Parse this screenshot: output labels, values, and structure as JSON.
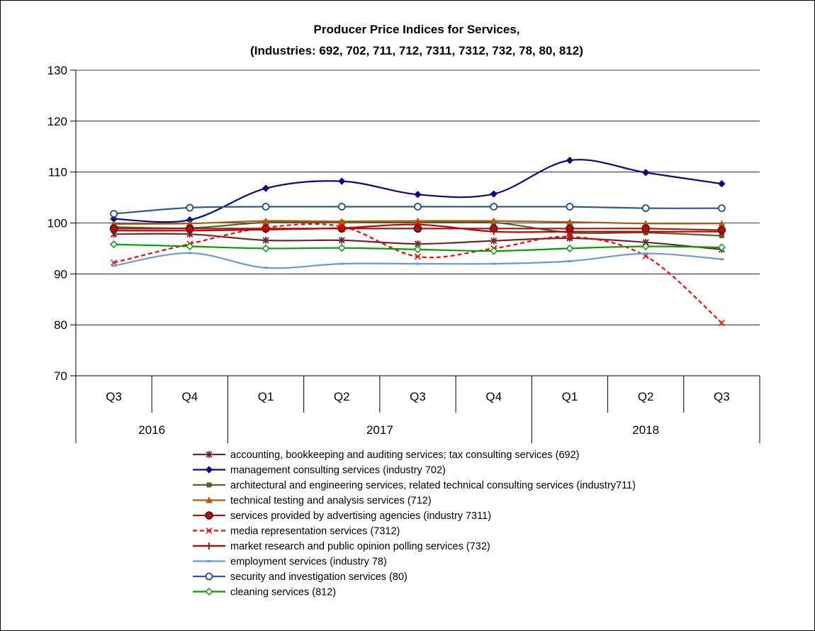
{
  "chart_data": {
    "type": "line",
    "title_line1": "Producer Price Indices for Services,",
    "title_line2": "(Industries: 692, 702, 711, 712, 7311, 7312, 732, 78, 80, 812)",
    "ylim": [
      70,
      130
    ],
    "yticks": [
      "70",
      "80",
      "90",
      "100",
      "110",
      "120",
      "130"
    ],
    "grid": true,
    "quarters": [
      "Q3",
      "Q4",
      "Q1",
      "Q2",
      "Q3",
      "Q4",
      "Q1",
      "Q2",
      "Q3"
    ],
    "years": [
      {
        "label": "2016",
        "span": 2
      },
      {
        "label": "2017",
        "span": 4
      },
      {
        "label": "2018",
        "span": 3
      }
    ],
    "legend_position": "bottom",
    "series": [
      {
        "name": "accounting, bookkeeping and auditing services; tax consulting services (692)",
        "color": "#6B2C2C",
        "marker": "star",
        "dash": false,
        "values": [
          97.8,
          97.8,
          96.6,
          96.6,
          95.9,
          96.5,
          97.0,
          96.2,
          94.8
        ]
      },
      {
        "name": "management consulting services (industry 702)",
        "color": "#0A0A80",
        "marker": "diamond",
        "dash": false,
        "values": [
          100.8,
          100.6,
          106.8,
          108.2,
          105.6,
          105.7,
          112.3,
          109.9,
          107.7
        ]
      },
      {
        "name": "architectural and engineering services, related technical consulting services (industry711)",
        "color": "#4F6228",
        "marker": "square",
        "dash": false,
        "values": [
          99.2,
          99.0,
          100.1,
          100.1,
          100.1,
          100.1,
          98.1,
          98.1,
          97.5
        ]
      },
      {
        "name": "technical testing and analysis services (712)",
        "color": "#B35A0E",
        "marker": "triangle",
        "dash": false,
        "values": [
          99.8,
          99.9,
          100.4,
          100.3,
          100.4,
          100.4,
          100.2,
          99.9,
          99.9
        ]
      },
      {
        "name": "services provided by advertising agencies (industry 7311)",
        "color": "#9B1D1D",
        "marker": "circle-filled",
        "dash": false,
        "values": [
          98.9,
          98.9,
          98.9,
          98.9,
          98.9,
          98.9,
          98.9,
          98.9,
          98.6
        ]
      },
      {
        "name": "media representation services (7312)",
        "color": "#FF0000",
        "marker": "x",
        "dash": true,
        "values": [
          92.2,
          95.9,
          99.1,
          99.3,
          93.4,
          95.0,
          97.3,
          93.5,
          80.4
        ]
      },
      {
        "name": "market research and public opinion polling services (732)",
        "color": "#C00000",
        "marker": "plus",
        "dash": false,
        "values": [
          98.5,
          98.5,
          98.7,
          99.0,
          99.7,
          98.3,
          98.3,
          98.3,
          98.3
        ]
      },
      {
        "name": "employment services (industry 78)",
        "color": "#6A9BD8",
        "marker": "dash",
        "dash": false,
        "values": [
          91.6,
          94.1,
          91.2,
          92.0,
          92.0,
          92.0,
          92.5,
          94.0,
          92.9
        ]
      },
      {
        "name": "security and investigation services (80)",
        "color": "#2F5A8A",
        "marker": "circle-open",
        "dash": false,
        "values": [
          101.8,
          103.0,
          103.2,
          103.2,
          103.2,
          103.2,
          103.2,
          102.9,
          102.9
        ]
      },
      {
        "name": "cleaning services (812)",
        "color": "#00A000",
        "marker": "diamond-open",
        "dash": false,
        "values": [
          95.8,
          95.4,
          95.0,
          95.1,
          94.8,
          94.5,
          95.0,
          95.4,
          95.2
        ]
      }
    ]
  }
}
